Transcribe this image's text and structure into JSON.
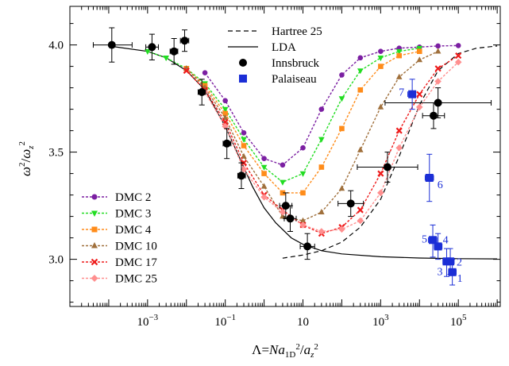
{
  "chart_data": {
    "type": "scatter",
    "title": "",
    "xlabel": "Λ=Na_1D^2/a_z^2",
    "ylabel": "ω^2/ω_z^2",
    "xscale": "log",
    "xlim": [
      1e-05,
      1200000.0
    ],
    "ylim": [
      2.78,
      4.18
    ],
    "x_tick_labels": [
      "10^-3",
      "10^-1",
      "10",
      "10^3",
      "10^5"
    ],
    "x_tick_values": [
      0.001,
      0.1,
      10,
      1000,
      100000
    ],
    "y_tick_labels": [
      "3.0",
      "3.5",
      "4.0"
    ],
    "y_tick_values": [
      3.0,
      3.5,
      4.0
    ],
    "grid": false,
    "legend_placement": [
      "top-center",
      "bottom-left"
    ],
    "lines": [
      {
        "name": "Hartree 25",
        "style": "dashed",
        "color": "#000000",
        "x": [
          3,
          10,
          30,
          100,
          300,
          1000,
          3000,
          10000,
          30000,
          100000,
          300000,
          1000000
        ],
        "y": [
          3.005,
          3.02,
          3.04,
          3.08,
          3.15,
          3.28,
          3.48,
          3.72,
          3.88,
          3.96,
          3.985,
          3.995
        ]
      },
      {
        "name": "LDA",
        "style": "solid",
        "color": "#000000",
        "x": [
          0.0001,
          0.001,
          0.003,
          0.01,
          0.03,
          0.1,
          0.2,
          0.5,
          1,
          2,
          5,
          10,
          30,
          100,
          1000,
          10000,
          100000,
          1000000
        ],
        "y": [
          3.995,
          3.97,
          3.94,
          3.88,
          3.79,
          3.62,
          3.5,
          3.34,
          3.24,
          3.17,
          3.1,
          3.07,
          3.04,
          3.025,
          3.012,
          3.006,
          3.003,
          3.002
        ]
      }
    ],
    "series": [
      {
        "name": "DMC 2",
        "color": "#7b1fa2",
        "marker": "circle",
        "x": [
          0.03,
          0.1,
          0.3,
          1,
          3,
          10,
          30,
          100,
          300,
          1000,
          3000,
          10000,
          30000,
          100000
        ],
        "y": [
          3.87,
          3.74,
          3.59,
          3.47,
          3.44,
          3.52,
          3.7,
          3.86,
          3.94,
          3.97,
          3.985,
          3.99,
          3.995,
          3.997
        ]
      },
      {
        "name": "DMC 3",
        "color": "#22dd22",
        "marker": "triangle-down",
        "x": [
          0.001,
          0.003,
          0.01,
          0.03,
          0.1,
          0.3,
          1,
          3,
          10,
          30,
          100,
          300,
          1000,
          3000,
          10000
        ],
        "y": [
          3.97,
          3.94,
          3.89,
          3.82,
          3.7,
          3.56,
          3.43,
          3.36,
          3.4,
          3.56,
          3.75,
          3.88,
          3.94,
          3.97,
          3.985
        ]
      },
      {
        "name": "DMC 4",
        "color": "#ff8c1a",
        "marker": "square",
        "x": [
          0.01,
          0.03,
          0.1,
          0.3,
          1,
          3,
          10,
          30,
          100,
          300,
          1000,
          3000,
          10000
        ],
        "y": [
          3.89,
          3.81,
          3.68,
          3.53,
          3.4,
          3.31,
          3.31,
          3.43,
          3.61,
          3.79,
          3.9,
          3.95,
          3.97
        ]
      },
      {
        "name": "DMC 10",
        "color": "#a0703c",
        "marker": "triangle-up",
        "x": [
          0.01,
          0.03,
          0.1,
          0.3,
          1,
          3,
          10,
          30,
          100,
          300,
          1000,
          3000,
          10000,
          30000
        ],
        "y": [
          3.89,
          3.8,
          3.66,
          3.48,
          3.34,
          3.2,
          3.18,
          3.22,
          3.33,
          3.51,
          3.71,
          3.85,
          3.93,
          3.97
        ]
      },
      {
        "name": "DMC 17",
        "color": "#ee1c1c",
        "marker": "x",
        "x": [
          0.01,
          0.03,
          0.1,
          0.3,
          1,
          3,
          10,
          30,
          100,
          300,
          1000,
          3000,
          10000,
          30000,
          100000
        ],
        "y": [
          3.88,
          3.79,
          3.64,
          3.45,
          3.3,
          3.23,
          3.16,
          3.12,
          3.15,
          3.23,
          3.4,
          3.6,
          3.77,
          3.89,
          3.95
        ]
      },
      {
        "name": "DMC 25",
        "color": "#ff8f8f",
        "marker": "diamond",
        "x": [
          0.03,
          0.1,
          0.3,
          1,
          3,
          10,
          30,
          100,
          300,
          1000,
          3000,
          10000,
          30000,
          100000
        ],
        "y": [
          3.78,
          3.62,
          3.42,
          3.29,
          3.22,
          3.16,
          3.13,
          3.14,
          3.18,
          3.31,
          3.52,
          3.71,
          3.83,
          3.92
        ]
      }
    ],
    "experiments": [
      {
        "name": "Innsbruck",
        "color": "#000000",
        "marker": "circle",
        "points": [
          {
            "x": 0.00012,
            "y": 4.0,
            "xlo": 4e-05,
            "xhi": 0.0004,
            "ylo": 3.92,
            "yhi": 4.08
          },
          {
            "x": 0.0013,
            "y": 3.99,
            "xlo": 0.0009,
            "xhi": 0.0019,
            "ylo": 3.93,
            "yhi": 4.05
          },
          {
            "x": 0.0048,
            "y": 3.97,
            "xlo": 0.0038,
            "xhi": 0.006,
            "ylo": 3.91,
            "yhi": 4.03
          },
          {
            "x": 0.009,
            "y": 4.02,
            "xlo": 0.007,
            "xhi": 0.0115,
            "ylo": 3.97,
            "yhi": 4.07
          },
          {
            "x": 0.025,
            "y": 3.78,
            "xlo": 0.02,
            "xhi": 0.031,
            "ylo": 3.72,
            "yhi": 3.84
          },
          {
            "x": 0.11,
            "y": 3.54,
            "xlo": 0.088,
            "xhi": 0.14,
            "ylo": 3.47,
            "yhi": 3.61
          },
          {
            "x": 0.26,
            "y": 3.39,
            "xlo": 0.21,
            "xhi": 0.33,
            "ylo": 3.33,
            "yhi": 3.45
          },
          {
            "x": 3.6,
            "y": 3.25,
            "xlo": 2.5,
            "xhi": 5.2,
            "ylo": 3.19,
            "yhi": 3.31
          },
          {
            "x": 4.7,
            "y": 3.19,
            "xlo": 3.3,
            "xhi": 6.7,
            "ylo": 3.13,
            "yhi": 3.25
          },
          {
            "x": 13,
            "y": 3.06,
            "xlo": 8.5,
            "xhi": 20,
            "ylo": 3.0,
            "yhi": 3.12
          },
          {
            "x": 170,
            "y": 3.26,
            "xlo": 80,
            "xhi": 360,
            "ylo": 3.2,
            "yhi": 3.32
          },
          {
            "x": 1500,
            "y": 3.43,
            "xlo": 250,
            "xhi": 9000,
            "ylo": 3.36,
            "yhi": 3.5
          },
          {
            "x": 23000,
            "y": 3.67,
            "xlo": 12000,
            "xhi": 44000,
            "ylo": 3.61,
            "yhi": 3.73
          },
          {
            "x": 30000,
            "y": 3.73,
            "xlo": 1300,
            "xhi": 700000,
            "ylo": 3.66,
            "yhi": 3.8
          }
        ]
      },
      {
        "name": "Palaiseau",
        "color": "#1b2ed6",
        "marker": "square",
        "points": [
          {
            "x": 6500,
            "y": 3.77,
            "label": "7",
            "xlo": 5000,
            "xhi": 8000,
            "ylo": 3.7,
            "yhi": 3.84
          },
          {
            "x": 18000,
            "y": 3.38,
            "label": "6",
            "xlo": 14000,
            "xhi": 23000,
            "ylo": 3.27,
            "yhi": 3.49
          },
          {
            "x": 22000,
            "y": 3.09,
            "label": "5",
            "xlo": 17000,
            "xhi": 28000,
            "ylo": 3.01,
            "yhi": 3.16
          },
          {
            "x": 30000,
            "y": 3.06,
            "label": "4",
            "xlo": 24000,
            "xhi": 38000,
            "ylo": 3.0,
            "yhi": 3.12
          },
          {
            "x": 50000,
            "y": 2.99,
            "label": "3",
            "xlo": 40000,
            "xhi": 62000,
            "ylo": 2.92,
            "yhi": 3.05
          },
          {
            "x": 62000,
            "y": 2.99,
            "label": "2",
            "xlo": 50000,
            "xhi": 78000,
            "ylo": 2.93,
            "yhi": 3.05
          },
          {
            "x": 70000,
            "y": 2.94,
            "label": "1",
            "xlo": 56000,
            "xhi": 88000,
            "ylo": 2.88,
            "yhi": 3.0
          }
        ]
      }
    ]
  }
}
